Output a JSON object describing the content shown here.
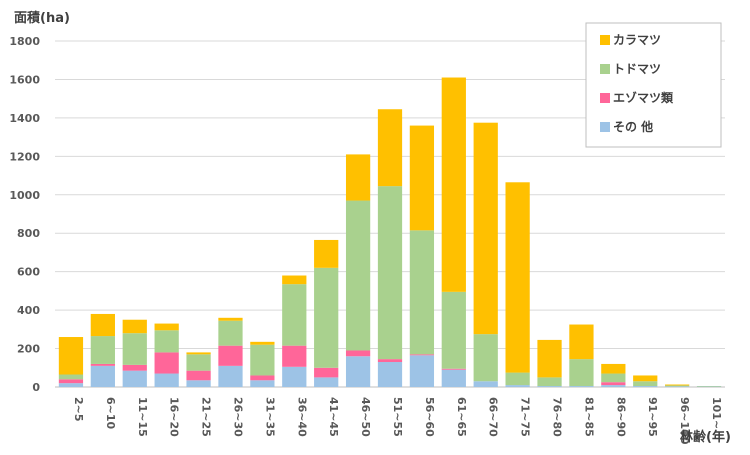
{
  "chart_data": {
    "type": "bar",
    "stacked": true,
    "title": "",
    "xlabel": "林齢(年)",
    "ylabel": "面積(ha)",
    "categories": [
      "2~5",
      "6~10",
      "11~15",
      "16~20",
      "21~25",
      "26~30",
      "31~35",
      "36~40",
      "41~45",
      "46~50",
      "51~55",
      "56~60",
      "61~65",
      "66~70",
      "71~75",
      "76~80",
      "81~85",
      "86~90",
      "91~95",
      "96~100",
      "101~"
    ],
    "ylim": [
      0,
      1800
    ],
    "yticks": [
      0,
      200,
      400,
      600,
      800,
      1000,
      1200,
      1400,
      1600,
      1800
    ],
    "grid": true,
    "legend_position": "top-right",
    "series": [
      {
        "name": "その 他",
        "color": "#9DC3E6",
        "values": [
          20,
          110,
          85,
          70,
          35,
          110,
          35,
          105,
          50,
          160,
          130,
          165,
          90,
          30,
          10,
          5,
          5,
          10,
          5,
          3,
          2
        ]
      },
      {
        "name": "エゾマツ類",
        "color": "#FF6699",
        "values": [
          20,
          10,
          30,
          110,
          50,
          105,
          25,
          110,
          50,
          30,
          15,
          5,
          5,
          0,
          0,
          0,
          0,
          15,
          0,
          0,
          0
        ]
      },
      {
        "name": "トドマツ",
        "color": "#A9D18E",
        "values": [
          25,
          145,
          165,
          115,
          85,
          130,
          160,
          320,
          520,
          780,
          900,
          645,
          400,
          245,
          65,
          45,
          140,
          45,
          25,
          5,
          3
        ]
      },
      {
        "name": "カラマツ",
        "color": "#FFC000",
        "values": [
          195,
          115,
          70,
          35,
          10,
          15,
          15,
          45,
          145,
          240,
          400,
          545,
          1115,
          1100,
          990,
          195,
          180,
          50,
          30,
          5,
          0
        ]
      }
    ],
    "legend_order": [
      "カラマツ",
      "トドマツ",
      "エゾマツ類",
      "その 他"
    ]
  }
}
